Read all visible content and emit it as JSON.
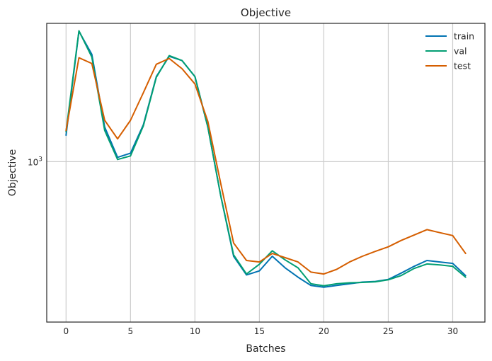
{
  "chart_data": {
    "type": "line",
    "title": "Objective",
    "xlabel": "Batches",
    "ylabel": "Objective",
    "yscale": "log",
    "grid": true,
    "legend_position": "top-right",
    "x": [
      0,
      1,
      2,
      3,
      4,
      5,
      6,
      7,
      8,
      9,
      10,
      11,
      12,
      13,
      14,
      15,
      16,
      17,
      18,
      19,
      20,
      21,
      22,
      23,
      24,
      25,
      26,
      27,
      28,
      29,
      30,
      31
    ],
    "xlim": [
      -1.5,
      32.5
    ],
    "ylim": [
      330,
      2600
    ],
    "x_ticks": [
      0,
      5,
      10,
      15,
      20,
      25,
      30
    ],
    "x_tick_labels": [
      "0",
      "5",
      "10",
      "15",
      "20",
      "25",
      "30"
    ],
    "y_ticks": [
      1000
    ],
    "y_tick_labels": [
      "10^3"
    ],
    "series": [
      {
        "name": "train",
        "color": "#0173b2",
        "values": [
          1200,
          2460,
          2100,
          1270,
          1030,
          1060,
          1290,
          1800,
          2070,
          2010,
          1800,
          1270,
          790,
          520,
          457,
          470,
          520,
          480,
          450,
          425,
          420,
          425,
          430,
          435,
          437,
          443,
          463,
          485,
          505,
          500,
          495,
          455
        ]
      },
      {
        "name": "val",
        "color": "#029e73",
        "values": [
          1230,
          2470,
          2060,
          1240,
          1015,
          1040,
          1280,
          1790,
          2080,
          2010,
          1800,
          1270,
          790,
          525,
          460,
          492,
          540,
          507,
          480,
          430,
          424,
          430,
          433,
          434,
          436,
          442,
          455,
          478,
          493,
          490,
          485,
          450
        ]
      },
      {
        "name": "test",
        "color": "#d55e00",
        "values": [
          1240,
          2050,
          1970,
          1330,
          1170,
          1330,
          1610,
          1960,
          2040,
          1900,
          1710,
          1320,
          860,
          570,
          505,
          500,
          530,
          515,
          500,
          466,
          460,
          475,
          500,
          520,
          538,
          555,
          580,
          602,
          625,
          612,
          600,
          530
        ]
      }
    ]
  }
}
